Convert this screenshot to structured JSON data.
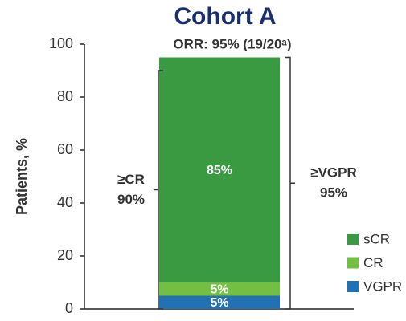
{
  "chart_data": {
    "type": "bar",
    "stacked": true,
    "title": "Cohort A",
    "y_label": "Patients, %",
    "categories": [
      null
    ],
    "series": [
      {
        "name": "VGPR",
        "color": "#2271b5",
        "values": [
          5
        ],
        "value_labels": [
          "5%"
        ]
      },
      {
        "name": "CR",
        "color": "#72bf44",
        "values": [
          5
        ],
        "value_labels": [
          "5%"
        ]
      },
      {
        "name": "sCR",
        "color": "#3a9a41",
        "values": [
          85
        ],
        "value_labels": [
          "85%"
        ]
      }
    ],
    "ylim": [
      0,
      100
    ],
    "yticks": [
      0,
      20,
      40,
      60,
      80,
      100
    ],
    "legend": "lower right",
    "annotation": "ORR: 95% (19/20ᵃ)",
    "brackets": [
      {
        "side": "left",
        "label": "≥CR",
        "value": 90,
        "value_label": "90%"
      },
      {
        "side": "right",
        "label": "≥VGPR",
        "value": 95,
        "value_label": "95%"
      }
    ]
  }
}
